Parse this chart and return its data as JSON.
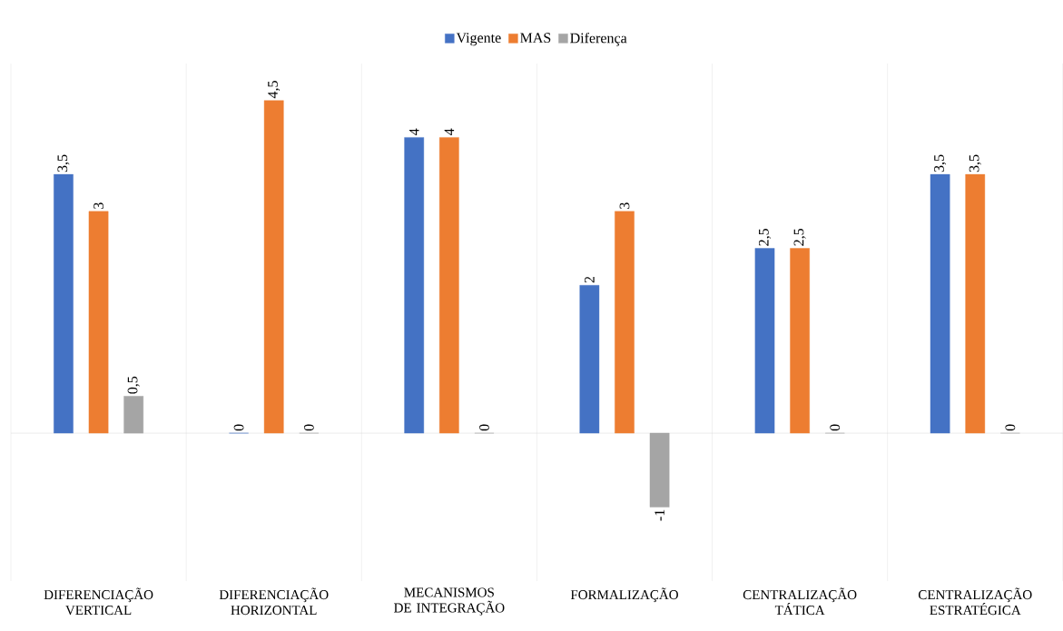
{
  "chart_data": {
    "type": "bar",
    "categories": [
      "DIFERENCIAÇÃO VERTICAL",
      "DIFERENCIAÇÃO HORIZONTAL",
      "MECANISMOS DE INTEGRAÇÃO",
      "FORMALIZAÇÃO",
      "CENTRALIZAÇÃO TÁTICA",
      "CENTRALIZAÇÃO ESTRATÉGICA"
    ],
    "series": [
      {
        "name": "Vigente",
        "color": "#4472c4",
        "values": [
          3.5,
          0,
          4,
          2,
          2.5,
          3.5
        ],
        "value_labels": [
          "3,5",
          "0",
          "4",
          "2",
          "2,5",
          "3,5"
        ]
      },
      {
        "name": "MAS",
        "color": "#ed7d31",
        "values": [
          3,
          4.5,
          4,
          3,
          2.5,
          3.5
        ],
        "value_labels": [
          "3",
          "4,5",
          "4",
          "3",
          "2,5",
          "3,5"
        ]
      },
      {
        "name": "Diferença",
        "color": "#a5a5a5",
        "values": [
          0.5,
          0,
          0,
          -1,
          0,
          0
        ],
        "value_labels": [
          "0,5",
          "0",
          "0",
          "-1",
          "0",
          "0"
        ]
      }
    ],
    "ylim": [
      -2,
      5
    ],
    "grid": "x",
    "legend": "top"
  }
}
